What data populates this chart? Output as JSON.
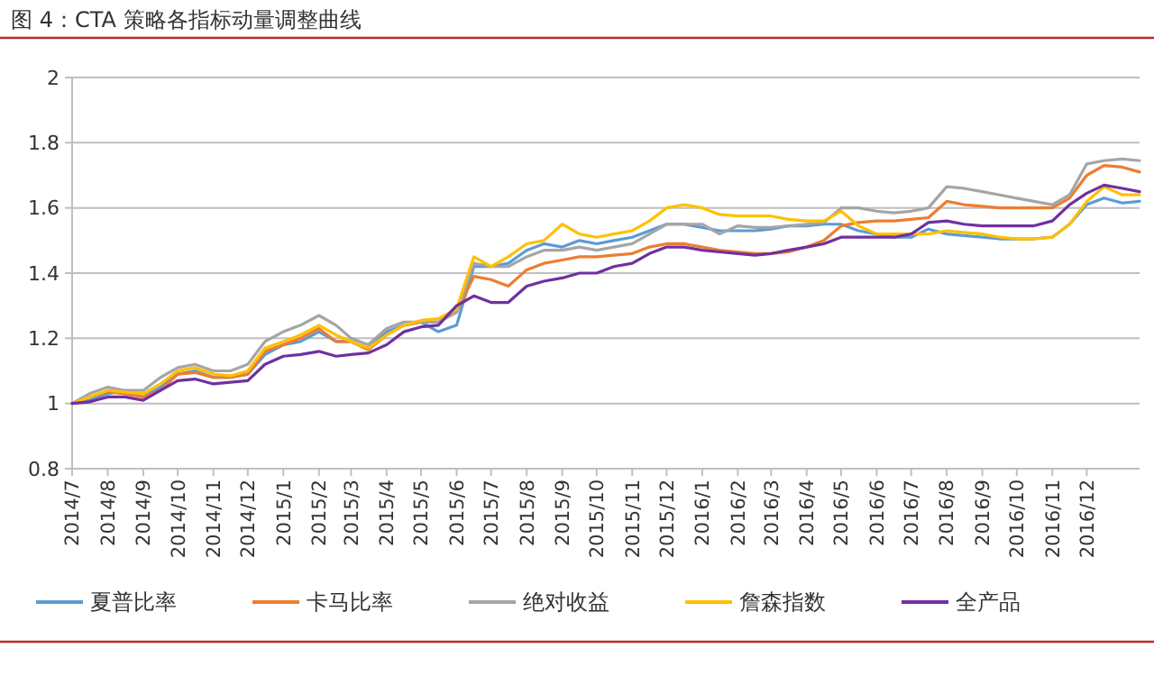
{
  "chart_data": {
    "type": "line",
    "title": "图 4：CTA 策略各指标动量调整曲线",
    "x": [
      "2014-07-01",
      "2014-07-16",
      "2014-08-01",
      "2014-08-16",
      "2014-09-01",
      "2014-09-16",
      "2014-10-01",
      "2014-10-16",
      "2014-11-01",
      "2014-11-16",
      "2014-12-01",
      "2014-12-16",
      "2015-01-01",
      "2015-01-16",
      "2015-02-01",
      "2015-02-16",
      "2015-03-01",
      "2015-03-16",
      "2015-04-01",
      "2015-04-16",
      "2015-05-01",
      "2015-05-16",
      "2015-06-01",
      "2015-06-16",
      "2015-07-01",
      "2015-07-16",
      "2015-08-01",
      "2015-08-16",
      "2015-09-01",
      "2015-09-16",
      "2015-10-01",
      "2015-10-16",
      "2015-11-01",
      "2015-11-16",
      "2015-12-01",
      "2015-12-16",
      "2016-01-01",
      "2016-01-16",
      "2016-02-01",
      "2016-02-16",
      "2016-03-01",
      "2016-03-16",
      "2016-04-01",
      "2016-04-16",
      "2016-05-01",
      "2016-05-16",
      "2016-06-01",
      "2016-06-16",
      "2016-07-01",
      "2016-07-16",
      "2016-08-01",
      "2016-08-16",
      "2016-09-01",
      "2016-09-16",
      "2016-10-01",
      "2016-10-16",
      "2016-11-01",
      "2016-11-16",
      "2016-12-01",
      "2016-12-16",
      "2017-01-01",
      "2017-01-16"
    ],
    "series": [
      {
        "name": "夏普比率",
        "color": "#5b9bd5",
        "values": [
          1.0,
          1.01,
          1.03,
          1.04,
          1.02,
          1.05,
          1.09,
          1.1,
          1.08,
          1.08,
          1.09,
          1.15,
          1.18,
          1.19,
          1.22,
          1.19,
          1.19,
          1.17,
          1.22,
          1.24,
          1.25,
          1.22,
          1.24,
          1.42,
          1.42,
          1.43,
          1.47,
          1.49,
          1.48,
          1.5,
          1.49,
          1.5,
          1.51,
          1.53,
          1.55,
          1.55,
          1.54,
          1.53,
          1.53,
          1.53,
          1.535,
          1.545,
          1.545,
          1.55,
          1.55,
          1.53,
          1.52,
          1.51,
          1.51,
          1.535,
          1.52,
          1.515,
          1.51,
          1.505,
          1.505,
          1.505,
          1.51,
          1.55,
          1.61,
          1.63,
          1.615,
          1.62
        ]
      },
      {
        "name": "卡马比率",
        "color": "#ed7d31",
        "values": [
          1.0,
          1.02,
          1.035,
          1.03,
          1.02,
          1.04,
          1.09,
          1.095,
          1.08,
          1.08,
          1.09,
          1.16,
          1.18,
          1.2,
          1.23,
          1.19,
          1.19,
          1.165,
          1.21,
          1.24,
          1.25,
          1.25,
          1.28,
          1.39,
          1.38,
          1.36,
          1.41,
          1.43,
          1.44,
          1.45,
          1.45,
          1.455,
          1.46,
          1.48,
          1.49,
          1.49,
          1.48,
          1.47,
          1.465,
          1.46,
          1.46,
          1.465,
          1.48,
          1.5,
          1.545,
          1.555,
          1.56,
          1.56,
          1.565,
          1.57,
          1.62,
          1.61,
          1.605,
          1.6,
          1.6,
          1.6,
          1.6,
          1.63,
          1.7,
          1.73,
          1.725,
          1.71
        ]
      },
      {
        "name": "绝对收益",
        "color": "#a5a5a5",
        "values": [
          1.0,
          1.03,
          1.05,
          1.04,
          1.04,
          1.08,
          1.11,
          1.12,
          1.1,
          1.1,
          1.12,
          1.19,
          1.22,
          1.24,
          1.27,
          1.24,
          1.2,
          1.18,
          1.23,
          1.25,
          1.25,
          1.25,
          1.28,
          1.43,
          1.42,
          1.42,
          1.45,
          1.47,
          1.47,
          1.48,
          1.47,
          1.48,
          1.49,
          1.52,
          1.55,
          1.55,
          1.55,
          1.52,
          1.545,
          1.54,
          1.54,
          1.545,
          1.55,
          1.555,
          1.6,
          1.6,
          1.59,
          1.585,
          1.59,
          1.6,
          1.665,
          1.66,
          1.65,
          1.64,
          1.63,
          1.62,
          1.61,
          1.64,
          1.735,
          1.745,
          1.75,
          1.745
        ]
      },
      {
        "name": "詹森指数",
        "color": "#ffc000",
        "values": [
          1.0,
          1.02,
          1.04,
          1.035,
          1.03,
          1.06,
          1.1,
          1.11,
          1.09,
          1.085,
          1.1,
          1.17,
          1.19,
          1.21,
          1.24,
          1.21,
          1.19,
          1.17,
          1.21,
          1.24,
          1.255,
          1.26,
          1.29,
          1.45,
          1.42,
          1.45,
          1.49,
          1.5,
          1.55,
          1.52,
          1.51,
          1.52,
          1.53,
          1.56,
          1.6,
          1.61,
          1.6,
          1.58,
          1.575,
          1.575,
          1.575,
          1.565,
          1.56,
          1.56,
          1.59,
          1.545,
          1.52,
          1.52,
          1.52,
          1.52,
          1.53,
          1.525,
          1.52,
          1.51,
          1.505,
          1.505,
          1.51,
          1.55,
          1.62,
          1.665,
          1.64,
          1.64
        ]
      },
      {
        "name": "全产品",
        "color": "#7030a0",
        "values": [
          1.0,
          1.005,
          1.02,
          1.02,
          1.01,
          1.04,
          1.07,
          1.075,
          1.06,
          1.065,
          1.07,
          1.12,
          1.145,
          1.15,
          1.16,
          1.145,
          1.15,
          1.155,
          1.18,
          1.22,
          1.235,
          1.24,
          1.3,
          1.33,
          1.31,
          1.31,
          1.36,
          1.375,
          1.385,
          1.4,
          1.4,
          1.42,
          1.43,
          1.46,
          1.48,
          1.48,
          1.47,
          1.465,
          1.46,
          1.455,
          1.46,
          1.47,
          1.48,
          1.49,
          1.51,
          1.51,
          1.51,
          1.51,
          1.52,
          1.555,
          1.56,
          1.55,
          1.545,
          1.545,
          1.545,
          1.545,
          1.56,
          1.61,
          1.645,
          1.67,
          1.66,
          1.65
        ]
      }
    ],
    "xlim": [
      "2014-07-01",
      "2017-01-16"
    ],
    "xticks": [
      {
        "value": "2014-07",
        "label": "2014/7"
      },
      {
        "value": "2014-08",
        "label": "2014/8"
      },
      {
        "value": "2014-09",
        "label": "2014/9"
      },
      {
        "value": "2014-10",
        "label": "2014/10"
      },
      {
        "value": "2014-11",
        "label": "2014/11"
      },
      {
        "value": "2014-12",
        "label": "2014/12"
      },
      {
        "value": "2015-01",
        "label": "2015/1"
      },
      {
        "value": "2015-02",
        "label": "2015/2"
      },
      {
        "value": "2015-03",
        "label": "2015/3"
      },
      {
        "value": "2015-04",
        "label": "2015/4"
      },
      {
        "value": "2015-05",
        "label": "2015/5"
      },
      {
        "value": "2015-06",
        "label": "2015/6"
      },
      {
        "value": "2015-07",
        "label": "2015/7"
      },
      {
        "value": "2015-08",
        "label": "2015/8"
      },
      {
        "value": "2015-09",
        "label": "2015/9"
      },
      {
        "value": "2015-10",
        "label": "2015/10"
      },
      {
        "value": "2015-11",
        "label": "2015/11"
      },
      {
        "value": "2015-12",
        "label": "2015/12"
      },
      {
        "value": "2016-01",
        "label": "2016/1"
      },
      {
        "value": "2016-02",
        "label": "2016/2"
      },
      {
        "value": "2016-03",
        "label": "2016/3"
      },
      {
        "value": "2016-04",
        "label": "2016/4"
      },
      {
        "value": "2016-05",
        "label": "2016/5"
      },
      {
        "value": "2016-06",
        "label": "2016/6"
      },
      {
        "value": "2016-07",
        "label": "2016/7"
      },
      {
        "value": "2016-08",
        "label": "2016/8"
      },
      {
        "value": "2016-09",
        "label": "2016/9"
      },
      {
        "value": "2016-10",
        "label": "2016/10"
      },
      {
        "value": "2016-11",
        "label": "2016/11"
      },
      {
        "value": "2016-12",
        "label": "2016/12"
      }
    ],
    "ylim": [
      0.8,
      2
    ],
    "yticks": [
      0.8,
      1,
      1.2,
      1.4,
      1.6,
      1.8,
      2
    ],
    "grid": "y",
    "legend": "bottom",
    "marker": "none",
    "line_style": "solid"
  }
}
